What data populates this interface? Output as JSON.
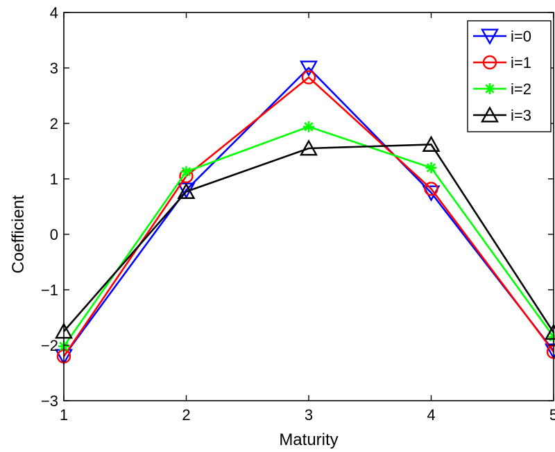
{
  "chart_data": {
    "type": "line",
    "title": "",
    "xlabel": "Maturity",
    "ylabel": "Coefficient",
    "xlim": [
      1,
      5
    ],
    "ylim": [
      -3,
      4
    ],
    "x_ticks": [
      "1",
      "2",
      "3",
      "4",
      "5"
    ],
    "y_ticks": [
      "4",
      "3",
      "2",
      "1",
      "0",
      "−1",
      "−2",
      "−3"
    ],
    "grid": false,
    "legend_position": "top-right",
    "x": [
      1,
      2,
      3,
      4,
      5
    ],
    "series": [
      {
        "name": "i=0",
        "color": "#0000ff",
        "marker": "triangle-down",
        "values": [
          -2.2,
          0.8,
          3.0,
          0.75,
          -2.1
        ]
      },
      {
        "name": "i=1",
        "color": "#ff0000",
        "marker": "circle",
        "values": [
          -2.2,
          1.05,
          2.83,
          0.82,
          -2.12
        ]
      },
      {
        "name": "i=2",
        "color": "#00ff00",
        "marker": "asterisk",
        "values": [
          -2.02,
          1.13,
          1.94,
          1.2,
          -1.85
        ]
      },
      {
        "name": "i=3",
        "color": "#000000",
        "marker": "triangle-up",
        "values": [
          -1.75,
          0.77,
          1.55,
          1.62,
          -1.77
        ]
      }
    ]
  }
}
